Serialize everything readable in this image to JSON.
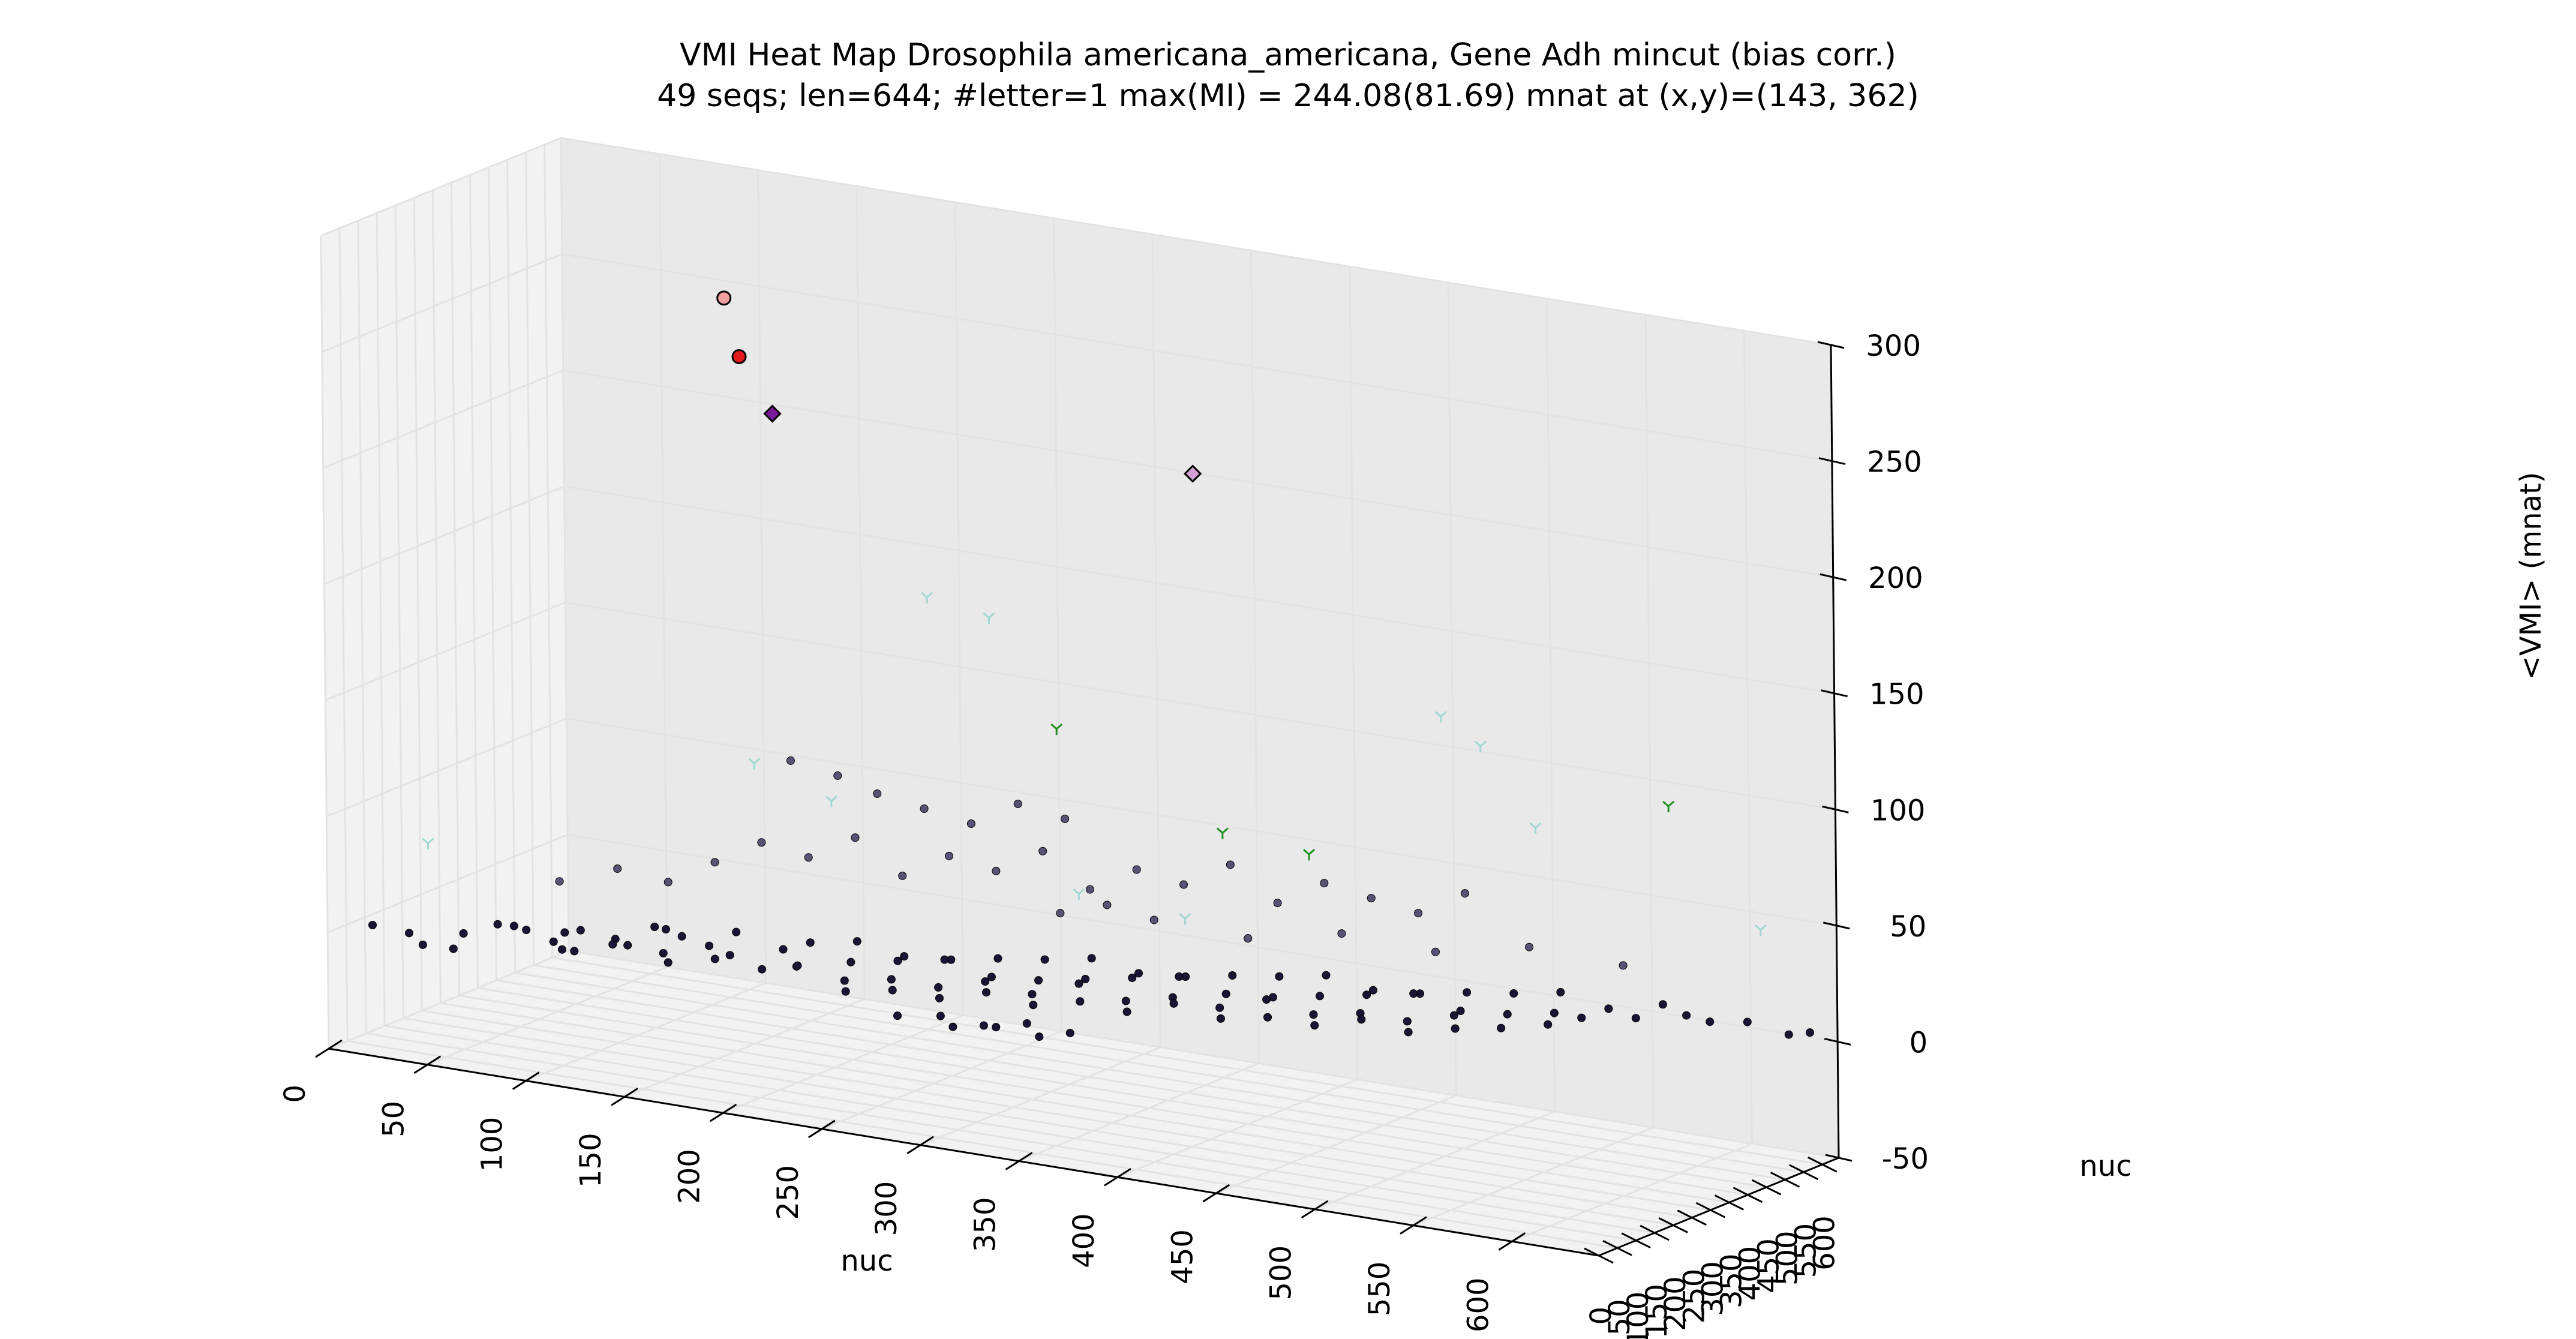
{
  "chart_data": {
    "type": "scatter",
    "title": "VMI Heat Map Drosophila americana_americana, Gene Adh mincut (bias corr.)",
    "subtitle": "49 seqs; len=644; #letter=1 max(MI) = 244.08(81.69) mnat at (x,y)=(143, 362)",
    "projection": "3d",
    "xlabel": "nuc",
    "ylabel": "nuc",
    "zlabel": "<VMI> (mnat)",
    "xlim": [
      0,
      644
    ],
    "ylim": [
      0,
      644
    ],
    "zlim": [
      -50,
      300
    ],
    "x_ticks": [
      "0",
      "50",
      "100",
      "150",
      "200",
      "250",
      "300",
      "350",
      "400",
      "450",
      "500",
      "550",
      "600"
    ],
    "y_ticks": [
      "0",
      "50",
      "100",
      "150",
      "200",
      "250",
      "300",
      "350",
      "400",
      "450",
      "500",
      "550",
      "600"
    ],
    "z_ticks": [
      "300",
      "250",
      "200",
      "150",
      "100",
      "50",
      "0",
      "-50"
    ],
    "z_tick_values": [
      300,
      250,
      200,
      150,
      100,
      50,
      0,
      -50
    ],
    "grid": true,
    "colors": {
      "pane": "#f2f2f2",
      "pane_dark": "#e9e9e9",
      "grid": "#e3e3e3",
      "low_point": "#1a1535",
      "mid_point": "#565375",
      "max_circle": "#e31a1c",
      "max_diamond": "#7a1a9a",
      "faint_circle": "#f0a0a0",
      "faint_diamond": "#d4a0d4",
      "tri_green": "#1f8f1f",
      "tri_light": "#9fd8d0"
    },
    "series": [
      {
        "marker": "circle",
        "color": "#e31a1c",
        "points": [
          {
            "x": 143,
            "y": 362,
            "z": 244.08
          }
        ]
      },
      {
        "marker": "diamond",
        "color": "#7a1a9a",
        "points": [
          {
            "x": 160,
            "y": 360,
            "z": 222
          }
        ]
      },
      {
        "marker": "circle",
        "color": "#f0a0a0",
        "points": [
          {
            "x": 135,
            "y": 365,
            "z": 268
          }
        ]
      },
      {
        "marker": "diamond",
        "color": "#d4a0d4",
        "points": [
          {
            "x": 320,
            "y": 640,
            "z": 200
          }
        ]
      },
      {
        "marker": "tri",
        "color": "#1f8f1f",
        "points": [
          {
            "x": 360,
            "y": 500,
            "z": 60
          },
          {
            "x": 400,
            "y": 520,
            "z": 55
          },
          {
            "x": 280,
            "y": 480,
            "z": 95
          },
          {
            "x": 560,
            "y": 640,
            "z": 90
          }
        ]
      },
      {
        "marker": "tri",
        "color": "#9fd8d0",
        "points": [
          {
            "x": 40,
            "y": 60,
            "z": 40
          },
          {
            "x": 170,
            "y": 250,
            "z": 80
          },
          {
            "x": 230,
            "y": 400,
            "z": 150
          },
          {
            "x": 250,
            "y": 460,
            "z": 140
          },
          {
            "x": 460,
            "y": 560,
            "z": 120
          },
          {
            "x": 480,
            "y": 560,
            "z": 110
          },
          {
            "x": 500,
            "y": 600,
            "z": 75
          },
          {
            "x": 610,
            "y": 620,
            "z": 45
          },
          {
            "x": 190,
            "y": 350,
            "z": 60
          },
          {
            "x": 300,
            "y": 430,
            "z": 30
          },
          {
            "x": 350,
            "y": 450,
            "z": 25
          }
        ]
      },
      {
        "marker": "dot",
        "color": "#1a1535",
        "points": [
          {
            "x": 20,
            "y": 15,
            "z": 5
          },
          {
            "x": 30,
            "y": 60,
            "z": 0
          },
          {
            "x": 35,
            "y": 70,
            "z": -5
          },
          {
            "x": 60,
            "y": 20,
            "z": 0
          },
          {
            "x": 75,
            "y": 60,
            "z": 10
          },
          {
            "x": 80,
            "y": 110,
            "z": 5
          },
          {
            "x": 90,
            "y": 130,
            "z": 0
          },
          {
            "x": 100,
            "y": 150,
            "z": 5
          },
          {
            "x": 110,
            "y": 80,
            "z": 2
          },
          {
            "x": 120,
            "y": 170,
            "z": 0
          },
          {
            "x": 130,
            "y": 190,
            "z": 8
          },
          {
            "x": 140,
            "y": 210,
            "z": 4
          },
          {
            "x": 150,
            "y": 230,
            "z": 0
          },
          {
            "x": 160,
            "y": 250,
            "z": 6
          },
          {
            "x": 170,
            "y": 180,
            "z": 2
          },
          {
            "x": 180,
            "y": 270,
            "z": 0
          },
          {
            "x": 190,
            "y": 290,
            "z": 3
          },
          {
            "x": 200,
            "y": 200,
            "z": 0
          },
          {
            "x": 210,
            "y": 310,
            "z": 5
          },
          {
            "x": 220,
            "y": 240,
            "z": 2
          },
          {
            "x": 230,
            "y": 330,
            "z": 0
          },
          {
            "x": 240,
            "y": 260,
            "z": 4
          },
          {
            "x": 250,
            "y": 350,
            "z": 0
          },
          {
            "x": 260,
            "y": 280,
            "z": 6
          },
          {
            "x": 270,
            "y": 370,
            "z": 2
          },
          {
            "x": 280,
            "y": 300,
            "z": 0
          },
          {
            "x": 290,
            "y": 390,
            "z": 3
          },
          {
            "x": 300,
            "y": 320,
            "z": 0
          },
          {
            "x": 310,
            "y": 410,
            "z": 5
          },
          {
            "x": 320,
            "y": 340,
            "z": 2
          },
          {
            "x": 330,
            "y": 430,
            "z": 0
          },
          {
            "x": 340,
            "y": 360,
            "z": 4
          },
          {
            "x": 350,
            "y": 450,
            "z": 0
          },
          {
            "x": 360,
            "y": 380,
            "z": 6
          },
          {
            "x": 370,
            "y": 470,
            "z": 2
          },
          {
            "x": 380,
            "y": 400,
            "z": 0
          },
          {
            "x": 390,
            "y": 490,
            "z": 3
          },
          {
            "x": 400,
            "y": 420,
            "z": 0
          },
          {
            "x": 410,
            "y": 510,
            "z": 5
          },
          {
            "x": 420,
            "y": 440,
            "z": 2
          },
          {
            "x": 430,
            "y": 530,
            "z": 0
          },
          {
            "x": 440,
            "y": 460,
            "z": 4
          },
          {
            "x": 450,
            "y": 550,
            "z": 0
          },
          {
            "x": 460,
            "y": 480,
            "z": 6
          },
          {
            "x": 470,
            "y": 570,
            "z": 2
          },
          {
            "x": 480,
            "y": 500,
            "z": 0
          },
          {
            "x": 490,
            "y": 590,
            "z": 3
          },
          {
            "x": 500,
            "y": 520,
            "z": 0
          },
          {
            "x": 510,
            "y": 610,
            "z": 5
          },
          {
            "x": 520,
            "y": 540,
            "z": 2
          },
          {
            "x": 530,
            "y": 560,
            "z": 0
          },
          {
            "x": 540,
            "y": 580,
            "z": 4
          },
          {
            "x": 550,
            "y": 600,
            "z": 0
          },
          {
            "x": 560,
            "y": 620,
            "z": 6
          },
          {
            "x": 570,
            "y": 630,
            "z": 2
          },
          {
            "x": 580,
            "y": 640,
            "z": 0
          },
          {
            "x": 600,
            "y": 635,
            "z": 3
          },
          {
            "x": 620,
            "y": 640,
            "z": 0
          },
          {
            "x": 630,
            "y": 644,
            "z": 2
          },
          {
            "x": 150,
            "y": 120,
            "z": 0
          },
          {
            "x": 170,
            "y": 140,
            "z": 3
          },
          {
            "x": 190,
            "y": 160,
            "z": 0
          },
          {
            "x": 210,
            "y": 150,
            "z": 5
          },
          {
            "x": 230,
            "y": 170,
            "z": 0
          },
          {
            "x": 250,
            "y": 190,
            "z": 2
          },
          {
            "x": 270,
            "y": 210,
            "z": 0
          },
          {
            "x": 290,
            "y": 230,
            "z": 4
          },
          {
            "x": 310,
            "y": 250,
            "z": 0
          },
          {
            "x": 330,
            "y": 270,
            "z": 6
          },
          {
            "x": 350,
            "y": 290,
            "z": 0
          },
          {
            "x": 370,
            "y": 310,
            "z": 3
          },
          {
            "x": 390,
            "y": 330,
            "z": 0
          },
          {
            "x": 410,
            "y": 350,
            "z": 5
          },
          {
            "x": 430,
            "y": 370,
            "z": 0
          },
          {
            "x": 450,
            "y": 390,
            "z": 2
          },
          {
            "x": 470,
            "y": 410,
            "z": 0
          },
          {
            "x": 490,
            "y": 430,
            "z": 4
          },
          {
            "x": 510,
            "y": 450,
            "z": 0
          },
          {
            "x": 530,
            "y": 470,
            "z": 3
          },
          {
            "x": 240,
            "y": 120,
            "z": 0
          },
          {
            "x": 260,
            "y": 140,
            "z": 2
          },
          {
            "x": 280,
            "y": 160,
            "z": 0
          },
          {
            "x": 300,
            "y": 180,
            "z": 4
          },
          {
            "x": 320,
            "y": 200,
            "z": 0
          },
          {
            "x": 340,
            "y": 220,
            "z": 3
          },
          {
            "x": 360,
            "y": 240,
            "z": 0
          },
          {
            "x": 380,
            "y": 260,
            "z": 5
          },
          {
            "x": 400,
            "y": 280,
            "z": 0
          },
          {
            "x": 420,
            "y": 300,
            "z": 2
          },
          {
            "x": 440,
            "y": 320,
            "z": 0
          },
          {
            "x": 460,
            "y": 340,
            "z": 4
          },
          {
            "x": 480,
            "y": 360,
            "z": 0
          },
          {
            "x": 500,
            "y": 380,
            "z": 3
          },
          {
            "x": 270,
            "y": 100,
            "z": -5
          },
          {
            "x": 290,
            "y": 110,
            "z": -3
          },
          {
            "x": 310,
            "y": 120,
            "z": -5
          },
          {
            "x": 330,
            "y": 130,
            "z": -2
          },
          {
            "x": 350,
            "y": 140,
            "z": -4
          },
          {
            "x": 300,
            "y": 90,
            "z": -5
          },
          {
            "x": 320,
            "y": 100,
            "z": -3
          },
          {
            "x": 340,
            "y": 110,
            "z": -5
          },
          {
            "x": 50,
            "y": 100,
            "z": 0
          },
          {
            "x": 70,
            "y": 130,
            "z": 4
          },
          {
            "x": 90,
            "y": 160,
            "z": 2
          },
          {
            "x": 110,
            "y": 190,
            "z": 0
          },
          {
            "x": 130,
            "y": 220,
            "z": 5
          },
          {
            "x": 100,
            "y": 100,
            "z": 0
          },
          {
            "x": 120,
            "y": 130,
            "z": 3
          },
          {
            "x": 140,
            "y": 160,
            "z": 0
          }
        ]
      },
      {
        "marker": "dot",
        "color": "#565375",
        "points": [
          {
            "x": 140,
            "y": 300,
            "z": 30
          },
          {
            "x": 160,
            "y": 320,
            "z": 40
          },
          {
            "x": 180,
            "y": 340,
            "z": 35
          },
          {
            "x": 200,
            "y": 360,
            "z": 45
          },
          {
            "x": 220,
            "y": 380,
            "z": 30
          },
          {
            "x": 240,
            "y": 400,
            "z": 40
          },
          {
            "x": 260,
            "y": 420,
            "z": 35
          },
          {
            "x": 280,
            "y": 440,
            "z": 45
          },
          {
            "x": 300,
            "y": 460,
            "z": 30
          },
          {
            "x": 320,
            "y": 480,
            "z": 40
          },
          {
            "x": 340,
            "y": 500,
            "z": 35
          },
          {
            "x": 360,
            "y": 520,
            "z": 45
          },
          {
            "x": 380,
            "y": 540,
            "z": 30
          },
          {
            "x": 400,
            "y": 560,
            "z": 40
          },
          {
            "x": 420,
            "y": 580,
            "z": 35
          },
          {
            "x": 440,
            "y": 600,
            "z": 30
          },
          {
            "x": 460,
            "y": 620,
            "z": 40
          },
          {
            "x": 200,
            "y": 420,
            "z": 60
          },
          {
            "x": 220,
            "y": 440,
            "z": 55
          },
          {
            "x": 240,
            "y": 460,
            "z": 50
          },
          {
            "x": 260,
            "y": 480,
            "z": 60
          },
          {
            "x": 280,
            "y": 500,
            "z": 55
          },
          {
            "x": 160,
            "y": 400,
            "z": 70
          },
          {
            "x": 180,
            "y": 420,
            "z": 65
          },
          {
            "x": 120,
            "y": 280,
            "z": 20
          },
          {
            "x": 100,
            "y": 250,
            "z": 25
          },
          {
            "x": 80,
            "y": 200,
            "z": 20
          },
          {
            "x": 300,
            "y": 380,
            "z": 25
          },
          {
            "x": 320,
            "y": 400,
            "z": 30
          },
          {
            "x": 340,
            "y": 420,
            "z": 25
          },
          {
            "x": 380,
            "y": 460,
            "z": 20
          },
          {
            "x": 420,
            "y": 500,
            "z": 25
          },
          {
            "x": 460,
            "y": 540,
            "z": 20
          },
          {
            "x": 500,
            "y": 580,
            "z": 25
          },
          {
            "x": 540,
            "y": 620,
            "z": 20
          }
        ]
      }
    ]
  }
}
